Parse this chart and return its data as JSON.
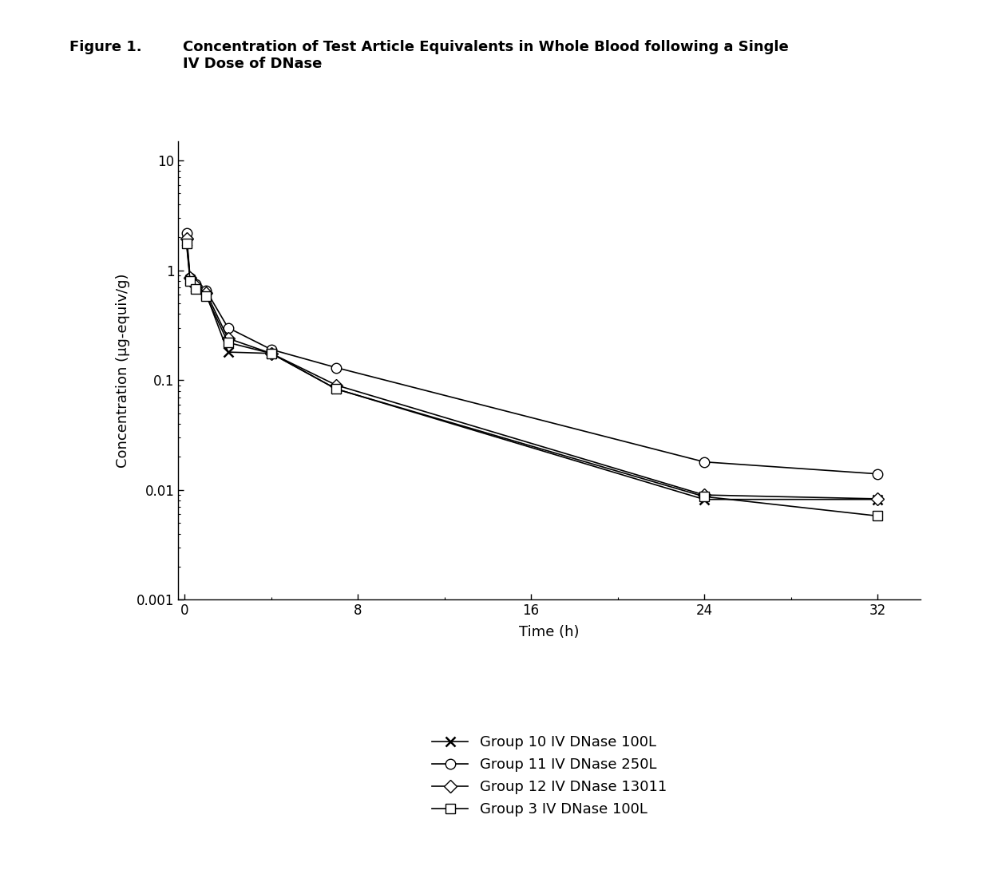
{
  "title_prefix": "Figure 1.",
  "title_text": "Concentration of Test Article Equivalents in Whole Blood following a Single\nIV Dose of DNase",
  "xlabel": "Time (h)",
  "ylabel": "Concentration (μg-equiv/g)",
  "background_color": "#ffffff",
  "xlim": [
    -0.3,
    34
  ],
  "ylim": [
    0.001,
    15
  ],
  "xticks": [
    0,
    8,
    16,
    24,
    32
  ],
  "groups": [
    {
      "label": "Group 10 IV DNase 100L",
      "marker": "x",
      "color": "#000000",
      "markersize": 9,
      "markerfacecolor": "none",
      "x": [
        0.083,
        0.25,
        0.5,
        1,
        2,
        4,
        7,
        24,
        32
      ],
      "y": [
        1.85,
        0.82,
        0.7,
        0.6,
        0.18,
        0.175,
        0.083,
        0.0082,
        0.0082
      ]
    },
    {
      "label": "Group 11 IV DNase 250L",
      "marker": "o",
      "color": "#000000",
      "markersize": 9,
      "markerfacecolor": "white",
      "x": [
        0.083,
        0.25,
        0.5,
        1,
        2,
        4,
        7,
        24,
        32
      ],
      "y": [
        2.2,
        0.85,
        0.75,
        0.65,
        0.3,
        0.19,
        0.13,
        0.018,
        0.014
      ]
    },
    {
      "label": "Group 12 IV DNase 13011",
      "marker": "D",
      "color": "#000000",
      "markersize": 8,
      "markerfacecolor": "white",
      "x": [
        0.083,
        0.25,
        0.5,
        1,
        2,
        4,
        7,
        24,
        32
      ],
      "y": [
        1.95,
        0.85,
        0.72,
        0.62,
        0.24,
        0.175,
        0.09,
        0.009,
        0.0083
      ]
    },
    {
      "label": "Group 3 IV DNase 100L",
      "marker": "s",
      "color": "#000000",
      "markersize": 8,
      "markerfacecolor": "white",
      "x": [
        0.083,
        0.25,
        0.5,
        1,
        2,
        4,
        7,
        24,
        32
      ],
      "y": [
        1.75,
        0.8,
        0.68,
        0.58,
        0.22,
        0.175,
        0.083,
        0.0087,
        0.0058
      ]
    }
  ]
}
